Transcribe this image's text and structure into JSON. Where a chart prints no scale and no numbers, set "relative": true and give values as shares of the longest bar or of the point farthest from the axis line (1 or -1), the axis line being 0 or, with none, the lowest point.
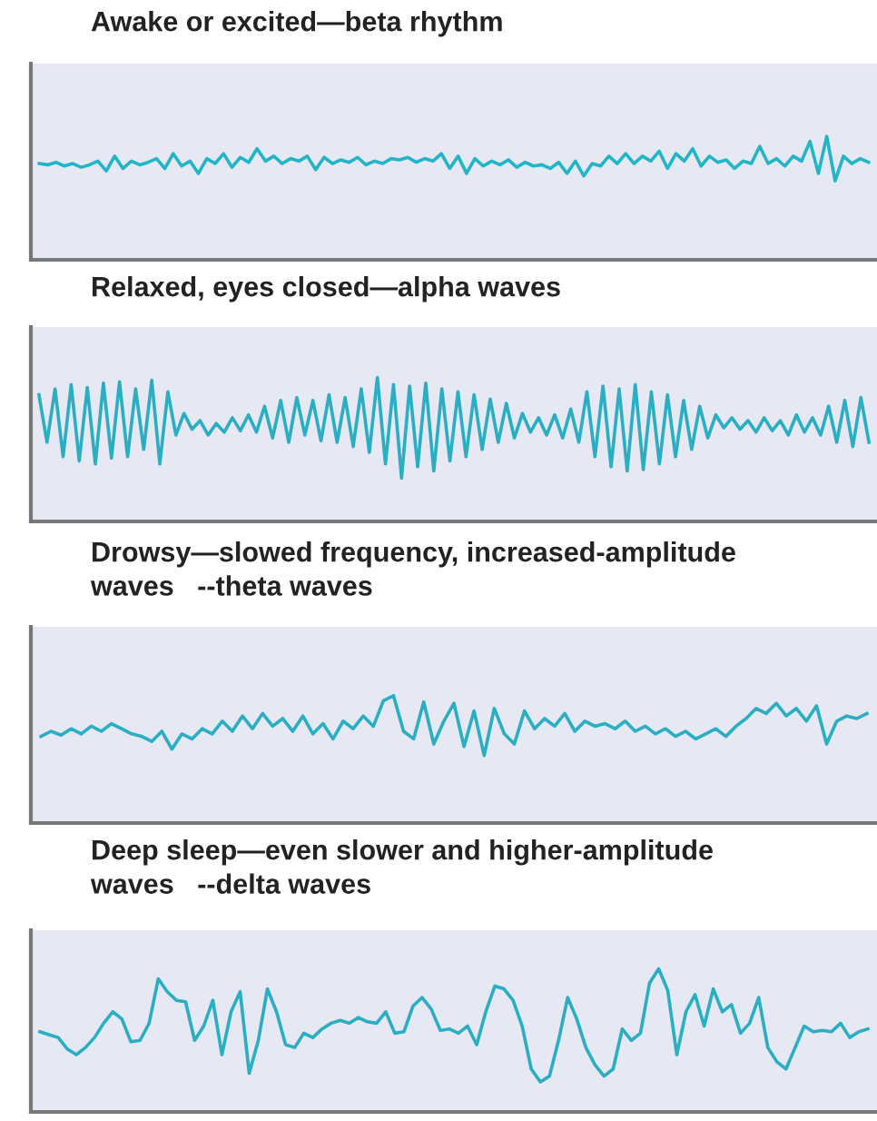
{
  "chart_data": [
    {
      "type": "line",
      "title": "Awake or excited—beta rhythm",
      "relative": true,
      "categories": [
        null,
        null,
        null,
        null,
        null,
        null,
        null,
        null,
        null,
        null,
        null,
        null,
        null,
        null,
        null,
        null,
        null,
        null,
        null,
        null,
        null,
        null,
        null,
        null,
        null,
        null,
        null,
        null,
        null,
        null,
        null,
        null,
        null,
        null,
        null,
        null,
        null,
        null,
        null,
        null,
        null,
        null,
        null,
        null,
        null,
        null,
        null,
        null,
        null,
        null,
        null,
        null,
        null,
        null,
        null,
        null,
        null,
        null,
        null,
        null,
        null,
        null,
        null,
        null,
        null,
        null,
        null,
        null,
        null,
        null,
        null,
        null,
        null,
        null,
        null,
        null,
        null,
        null,
        null,
        null,
        null,
        null,
        null,
        null,
        null,
        null,
        null,
        null,
        null,
        null,
        null,
        null,
        null,
        null,
        null,
        null,
        null,
        null,
        null,
        null
      ],
      "series": [
        {
          "color": "#22b5c8",
          "values": [
            0.78,
            0.77,
            0.79,
            0.76,
            0.78,
            0.75,
            0.77,
            0.8,
            0.72,
            0.84,
            0.74,
            0.8,
            0.77,
            0.79,
            0.82,
            0.74,
            0.86,
            0.76,
            0.8,
            0.7,
            0.82,
            0.78,
            0.86,
            0.75,
            0.83,
            0.79,
            0.9,
            0.8,
            0.84,
            0.78,
            0.82,
            0.8,
            0.84,
            0.73,
            0.83,
            0.78,
            0.81,
            0.79,
            0.83,
            0.77,
            0.8,
            0.78,
            0.82,
            0.81,
            0.83,
            0.79,
            0.82,
            0.8,
            0.86,
            0.74,
            0.84,
            0.7,
            0.82,
            0.76,
            0.8,
            0.77,
            0.81,
            0.75,
            0.79,
            0.76,
            0.77,
            0.74,
            0.79,
            0.7,
            0.8,
            0.68,
            0.78,
            0.76,
            0.84,
            0.78,
            0.86,
            0.78,
            0.84,
            0.8,
            0.88,
            0.74,
            0.86,
            0.8,
            0.9,
            0.76,
            0.84,
            0.79,
            0.81,
            0.74,
            0.8,
            0.78,
            0.92,
            0.78,
            0.82,
            0.76,
            0.84,
            0.8,
            0.96,
            0.7,
            1.0,
            0.64,
            0.84,
            0.78,
            0.82,
            0.79
          ]
        }
      ]
    },
    {
      "type": "line",
      "title": "Relaxed, eyes closed—alpha waves",
      "relative": true,
      "categories": [
        null,
        null,
        null,
        null,
        null,
        null,
        null,
        null,
        null,
        null,
        null,
        null,
        null,
        null,
        null,
        null,
        null,
        null,
        null,
        null,
        null,
        null,
        null,
        null,
        null,
        null,
        null,
        null,
        null,
        null,
        null,
        null,
        null,
        null,
        null,
        null,
        null,
        null,
        null,
        null,
        null,
        null,
        null,
        null,
        null,
        null,
        null,
        null,
        null,
        null,
        null,
        null,
        null,
        null,
        null,
        null,
        null,
        null,
        null,
        null,
        null,
        null,
        null,
        null,
        null,
        null,
        null,
        null,
        null,
        null,
        null,
        null,
        null,
        null,
        null,
        null,
        null,
        null,
        null,
        null,
        null,
        null,
        null,
        null,
        null,
        null,
        null,
        null,
        null,
        null,
        null,
        null,
        null,
        null,
        null,
        null,
        null,
        null,
        null,
        null,
        null,
        null,
        null,
        null
      ],
      "series": [
        {
          "color": "#2aaec4",
          "values": [
            0.88,
            0.55,
            0.92,
            0.45,
            0.95,
            0.42,
            0.93,
            0.4,
            0.96,
            0.44,
            0.97,
            0.45,
            0.92,
            0.5,
            0.98,
            0.4,
            0.9,
            0.6,
            0.75,
            0.64,
            0.7,
            0.6,
            0.68,
            0.62,
            0.72,
            0.63,
            0.74,
            0.62,
            0.8,
            0.58,
            0.84,
            0.55,
            0.86,
            0.6,
            0.84,
            0.56,
            0.88,
            0.55,
            0.86,
            0.52,
            0.92,
            0.48,
            1.0,
            0.4,
            0.95,
            0.3,
            0.94,
            0.38,
            0.96,
            0.35,
            0.92,
            0.42,
            0.9,
            0.45,
            0.88,
            0.5,
            0.85,
            0.55,
            0.82,
            0.58,
            0.75,
            0.62,
            0.72,
            0.6,
            0.74,
            0.58,
            0.78,
            0.55,
            0.9,
            0.45,
            0.94,
            0.38,
            0.92,
            0.35,
            0.95,
            0.36,
            0.9,
            0.4,
            0.88,
            0.45,
            0.84,
            0.5,
            0.8,
            0.58,
            0.74,
            0.65,
            0.72,
            0.64,
            0.7,
            0.62,
            0.72,
            0.63,
            0.7,
            0.6,
            0.74,
            0.62,
            0.72,
            0.6,
            0.8,
            0.55,
            0.84,
            0.52,
            0.86,
            0.55
          ]
        }
      ]
    },
    {
      "type": "line",
      "title": "Drowsy—slowed frequency, increased-amplitude\nwaves   --theta waves",
      "relative": true,
      "categories": [
        null,
        null,
        null,
        null,
        null,
        null,
        null,
        null,
        null,
        null,
        null,
        null,
        null,
        null,
        null,
        null,
        null,
        null,
        null,
        null,
        null,
        null,
        null,
        null,
        null,
        null,
        null,
        null,
        null,
        null,
        null,
        null,
        null,
        null,
        null,
        null,
        null,
        null,
        null,
        null,
        null,
        null,
        null,
        null,
        null,
        null,
        null,
        null,
        null,
        null,
        null,
        null,
        null,
        null,
        null,
        null,
        null,
        null,
        null,
        null,
        null,
        null,
        null,
        null,
        null,
        null,
        null,
        null,
        null,
        null,
        null,
        null,
        null,
        null,
        null,
        null,
        null,
        null,
        null,
        null,
        null,
        null,
        null
      ],
      "series": [
        {
          "color": "#2aaec4",
          "values": [
            0.68,
            0.72,
            0.69,
            0.74,
            0.7,
            0.76,
            0.72,
            0.78,
            0.74,
            0.7,
            0.68,
            0.64,
            0.72,
            0.58,
            0.7,
            0.66,
            0.74,
            0.7,
            0.8,
            0.72,
            0.84,
            0.74,
            0.86,
            0.76,
            0.82,
            0.72,
            0.84,
            0.7,
            0.78,
            0.66,
            0.8,
            0.74,
            0.84,
            0.76,
            0.96,
            1.0,
            0.72,
            0.66,
            0.95,
            0.62,
            0.8,
            0.94,
            0.6,
            0.88,
            0.53,
            0.9,
            0.7,
            0.62,
            0.88,
            0.74,
            0.82,
            0.76,
            0.86,
            0.72,
            0.8,
            0.76,
            0.78,
            0.74,
            0.8,
            0.72,
            0.76,
            0.7,
            0.74,
            0.68,
            0.72,
            0.66,
            0.7,
            0.74,
            0.68,
            0.76,
            0.82,
            0.9,
            0.86,
            0.94,
            0.84,
            0.9,
            0.8,
            0.92,
            0.62,
            0.8,
            0.84,
            0.82,
            0.86
          ]
        }
      ]
    },
    {
      "type": "line",
      "title": "Deep sleep—even slower and higher-amplitude\nwaves   --delta waves",
      "relative": true,
      "categories": [
        null,
        null,
        null,
        null,
        null,
        null,
        null,
        null,
        null,
        null,
        null,
        null,
        null,
        null,
        null,
        null,
        null,
        null,
        null,
        null,
        null,
        null,
        null,
        null,
        null,
        null,
        null,
        null,
        null,
        null,
        null,
        null,
        null,
        null,
        null,
        null,
        null,
        null,
        null,
        null,
        null,
        null,
        null,
        null,
        null,
        null,
        null,
        null,
        null,
        null,
        null,
        null,
        null,
        null,
        null,
        null,
        null,
        null,
        null,
        null,
        null,
        null,
        null,
        null,
        null,
        null,
        null,
        null,
        null,
        null,
        null,
        null,
        null,
        null,
        null,
        null,
        null,
        null,
        null,
        null,
        null,
        null,
        null,
        null,
        null,
        null,
        null,
        null,
        null,
        null,
        null,
        null
      ],
      "series": [
        {
          "color": "#2aaec4",
          "values": [
            0.56,
            0.54,
            0.52,
            0.44,
            0.4,
            0.45,
            0.52,
            0.62,
            0.7,
            0.65,
            0.49,
            0.5,
            0.62,
            0.93,
            0.84,
            0.78,
            0.77,
            0.5,
            0.6,
            0.78,
            0.4,
            0.7,
            0.84,
            0.27,
            0.5,
            0.86,
            0.7,
            0.47,
            0.45,
            0.55,
            0.52,
            0.58,
            0.62,
            0.64,
            0.62,
            0.66,
            0.63,
            0.62,
            0.7,
            0.55,
            0.56,
            0.74,
            0.8,
            0.72,
            0.57,
            0.58,
            0.55,
            0.6,
            0.47,
            0.7,
            0.88,
            0.86,
            0.78,
            0.6,
            0.3,
            0.21,
            0.25,
            0.5,
            0.8,
            0.65,
            0.45,
            0.33,
            0.25,
            0.3,
            0.58,
            0.5,
            0.55,
            0.9,
            1.0,
            0.85,
            0.4,
            0.7,
            0.82,
            0.6,
            0.86,
            0.7,
            0.75,
            0.55,
            0.62,
            0.8,
            0.45,
            0.35,
            0.3,
            0.45,
            0.6,
            0.56,
            0.57,
            0.56,
            0.62,
            0.52,
            0.56,
            0.58
          ]
        }
      ]
    }
  ]
}
